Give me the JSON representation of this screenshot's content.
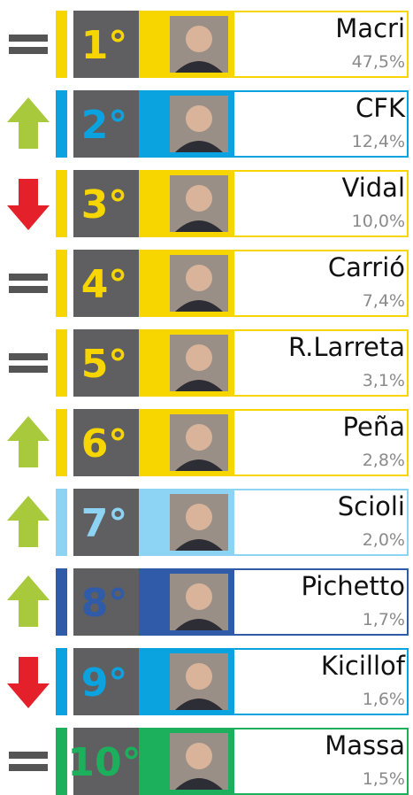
{
  "rows": [
    {
      "rank": "1°",
      "name": "Macri",
      "value": "47,5%",
      "trend": "same",
      "color": "#f7d600"
    },
    {
      "rank": "2°",
      "name": "CFK",
      "value": "12,4%",
      "trend": "up",
      "color": "#0aa3df"
    },
    {
      "rank": "3°",
      "name": "Vidal",
      "value": "10,0%",
      "trend": "down",
      "color": "#f7d600"
    },
    {
      "rank": "4°",
      "name": "Carrió",
      "value": "7,4%",
      "trend": "same",
      "color": "#f7d600"
    },
    {
      "rank": "5°",
      "name": "R.Larreta",
      "value": "3,1%",
      "trend": "same",
      "color": "#f7d600"
    },
    {
      "rank": "6°",
      "name": "Peña",
      "value": "2,8%",
      "trend": "up",
      "color": "#f7d600"
    },
    {
      "rank": "7°",
      "name": "Scioli",
      "value": "2,0%",
      "trend": "up",
      "color": "#8dd3f3"
    },
    {
      "rank": "8°",
      "name": "Pichetto",
      "value": "1,7%",
      "trend": "up",
      "color": "#2f5ba9"
    },
    {
      "rank": "9°",
      "name": "Kicillof",
      "value": "1,6%",
      "trend": "down",
      "color": "#0aa3df"
    },
    {
      "rank": "10°",
      "name": "Massa",
      "value": "1,5%",
      "trend": "same",
      "color": "#1cb05c"
    }
  ]
}
